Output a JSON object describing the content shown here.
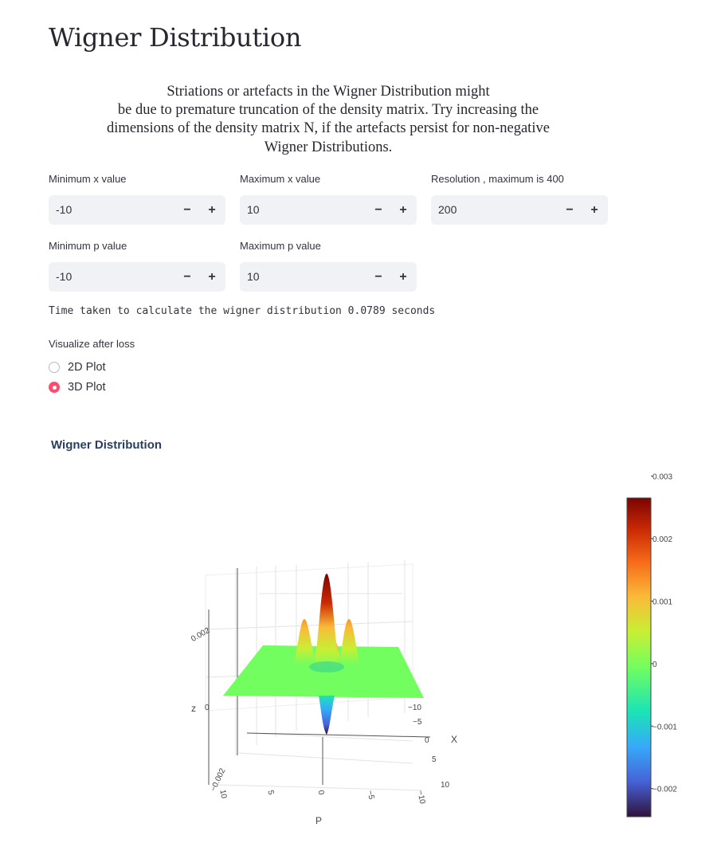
{
  "page": {
    "title": "Wigner Distribution",
    "note_lines": [
      "Striations or artefacts in the Wigner Distribution might",
      "be due to premature truncation of the density matrix. Try increasing the",
      "dimensions of the density matrix N, if the artefacts persist for non-negative",
      "Wigner Distributions."
    ]
  },
  "inputs": [
    {
      "label": "Minimum x value",
      "value": "-10"
    },
    {
      "label": "Maximum x value",
      "value": "10"
    },
    {
      "label": "Resolution , maximum is 400",
      "value": "200"
    },
    {
      "label": "Minimum p value",
      "value": "-10"
    },
    {
      "label": "Maximum p value",
      "value": "10"
    }
  ],
  "stepper": {
    "minus": "−",
    "plus": "+"
  },
  "timing_text": "Time taken to calculate the wigner distribution 0.0789 seconds",
  "visualize": {
    "label": "Visualize after loss",
    "options": [
      "2D Plot",
      "3D Plot"
    ],
    "selected": "3D Plot",
    "accent_color": "#ff4b6e"
  },
  "chart_data": {
    "type": "surface",
    "title": "Wigner Distribution",
    "axes": {
      "x": {
        "label": "X",
        "ticks": [
          "−10",
          "−5",
          "0",
          "5",
          "10"
        ]
      },
      "p": {
        "label": "P",
        "ticks": [
          "10",
          "5",
          "0",
          "−5",
          "−10"
        ]
      },
      "z": {
        "label": "z",
        "ticks": [
          "−0.002",
          "0",
          "0.002"
        ]
      }
    },
    "surface": {
      "central_peak": 0.0031,
      "side_peaks": 0.0016,
      "central_dip": -0.0021,
      "base_value": 0
    },
    "colorbar": {
      "ticks": [
        "0.003",
        "0.002",
        "0.001",
        "0",
        "−0.001",
        "−0.002"
      ],
      "range": [
        -0.00245,
        0.00265
      ],
      "colorscale": [
        "#30123b",
        "#4662d7",
        "#36aaf9",
        "#1ae4b6",
        "#72fe5e",
        "#c8ef34",
        "#faba39",
        "#f66b19",
        "#cb2a04",
        "#7a0403"
      ]
    }
  }
}
